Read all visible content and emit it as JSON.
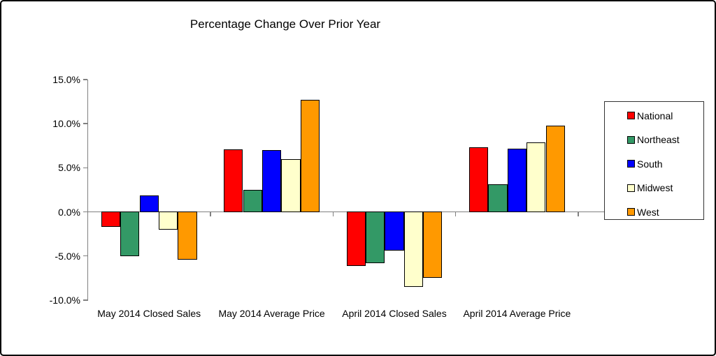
{
  "frame": {
    "background": "#ffffff",
    "border_color": "#000000"
  },
  "chart_data": {
    "type": "bar",
    "title": "Percentage Change Over Prior Year",
    "categories": [
      "May 2014 Closed Sales",
      "May 2014 Average Price",
      "April 2014 Closed Sales",
      "April 2014 Average Price"
    ],
    "series": [
      {
        "name": "National",
        "color": "#FF0000",
        "values": [
          -1.7,
          7.1,
          -6.1,
          7.3
        ]
      },
      {
        "name": "Northeast",
        "color": "#339966",
        "values": [
          -5.0,
          2.5,
          -5.8,
          3.1
        ]
      },
      {
        "name": "South",
        "color": "#0000FF",
        "values": [
          1.9,
          7.0,
          -4.4,
          7.2
        ]
      },
      {
        "name": "Midwest",
        "color": "#FFFFCC",
        "values": [
          -2.0,
          6.0,
          -8.5,
          7.9
        ]
      },
      {
        "name": "West",
        "color": "#FF9900",
        "values": [
          -5.4,
          12.7,
          -7.5,
          9.8
        ]
      }
    ],
    "xlabel": "",
    "ylabel": "",
    "ylim": [
      -10,
      15
    ],
    "ytick_step": 5,
    "yticks": [
      15,
      10,
      5,
      0,
      -5,
      -10
    ],
    "ytick_labels": [
      "15.0%",
      "10.0%",
      "5.0%",
      "0.0%",
      "-5.0%",
      "-10.0%"
    ],
    "grid": false,
    "legend_position": "right",
    "axis_color": "#808080",
    "bar_border_color": "#000000",
    "text_color": "#000000"
  }
}
